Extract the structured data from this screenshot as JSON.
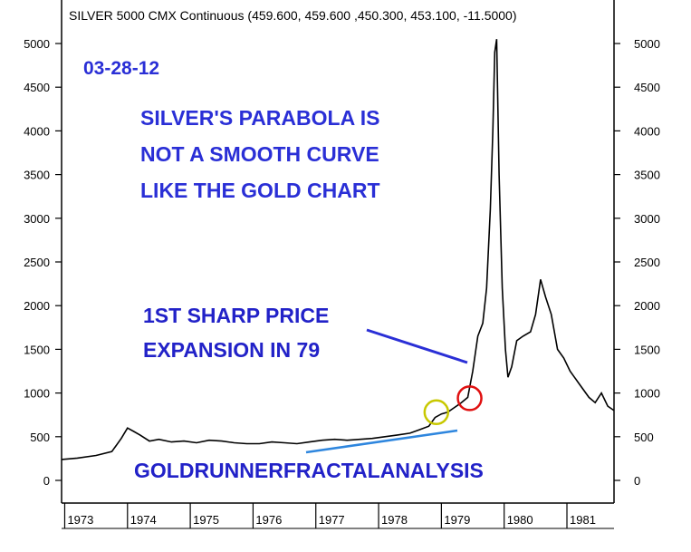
{
  "chart_data": {
    "type": "line",
    "title": "SILVER 5000 CMX Continuous (459.600, 459.600 ,450.300, 453.100, -11.5000)",
    "xlabel": "",
    "ylabel": "",
    "x_ticks": [
      "1973",
      "1974",
      "1975",
      "1976",
      "1977",
      "1978",
      "1979",
      "1980",
      "1981"
    ],
    "y_ticks": [
      0,
      500,
      1000,
      1500,
      2000,
      2500,
      3000,
      3500,
      4000,
      4500,
      5000
    ],
    "xlim": [
      1972.95,
      1981.75
    ],
    "ylim": [
      -100,
      5300
    ],
    "grid": false,
    "line_color": "#000000",
    "annotation_color": "#2a2fd6",
    "accent_line_color": "#2e86de",
    "series": [
      {
        "values": [
          [
            1972.95,
            240
          ],
          [
            1973.2,
            255
          ],
          [
            1973.5,
            285
          ],
          [
            1973.75,
            330
          ],
          [
            1973.9,
            480
          ],
          [
            1974.0,
            600
          ],
          [
            1974.1,
            560
          ],
          [
            1974.2,
            520
          ],
          [
            1974.35,
            450
          ],
          [
            1974.5,
            470
          ],
          [
            1974.7,
            440
          ],
          [
            1974.9,
            450
          ],
          [
            1975.1,
            430
          ],
          [
            1975.3,
            460
          ],
          [
            1975.5,
            450
          ],
          [
            1975.7,
            430
          ],
          [
            1975.9,
            420
          ],
          [
            1976.1,
            420
          ],
          [
            1976.3,
            440
          ],
          [
            1976.5,
            430
          ],
          [
            1976.7,
            420
          ],
          [
            1976.9,
            440
          ],
          [
            1977.1,
            460
          ],
          [
            1977.3,
            470
          ],
          [
            1977.5,
            460
          ],
          [
            1977.7,
            470
          ],
          [
            1977.9,
            480
          ],
          [
            1978.1,
            500
          ],
          [
            1978.3,
            520
          ],
          [
            1978.5,
            540
          ],
          [
            1978.65,
            580
          ],
          [
            1978.8,
            620
          ],
          [
            1978.9,
            720
          ],
          [
            1979.0,
            760
          ],
          [
            1979.1,
            780
          ],
          [
            1979.2,
            830
          ],
          [
            1979.3,
            880
          ],
          [
            1979.42,
            950
          ],
          [
            1979.5,
            1250
          ],
          [
            1979.58,
            1650
          ],
          [
            1979.66,
            1800
          ],
          [
            1979.72,
            2200
          ],
          [
            1979.78,
            3100
          ],
          [
            1979.82,
            4000
          ],
          [
            1979.85,
            4900
          ],
          [
            1979.88,
            5050
          ],
          [
            1979.92,
            3500
          ],
          [
            1979.97,
            2200
          ],
          [
            1980.02,
            1500
          ],
          [
            1980.06,
            1180
          ],
          [
            1980.12,
            1300
          ],
          [
            1980.2,
            1600
          ],
          [
            1980.3,
            1650
          ],
          [
            1980.42,
            1700
          ],
          [
            1980.5,
            1900
          ],
          [
            1980.58,
            2300
          ],
          [
            1980.66,
            2100
          ],
          [
            1980.75,
            1900
          ],
          [
            1980.85,
            1500
          ],
          [
            1980.95,
            1400
          ],
          [
            1981.05,
            1250
          ],
          [
            1981.2,
            1100
          ],
          [
            1981.35,
            950
          ],
          [
            1981.45,
            890
          ],
          [
            1981.55,
            1000
          ],
          [
            1981.65,
            850
          ],
          [
            1981.75,
            800
          ]
        ]
      }
    ],
    "annotations": {
      "date": "03-28-12",
      "headline_lines": [
        "SILVER'S PARABOLA IS",
        "NOT A SMOOTH CURVE",
        "LIKE THE GOLD CHART"
      ],
      "expansion_lines": [
        "1ST SHARP PRICE",
        "EXPANSION IN 79"
      ],
      "signature": "GOLDRUNNERFRACTALANALYSIS"
    },
    "markers": [
      {
        "kind": "circle",
        "color": "#c8c800",
        "x": 1978.92,
        "y": 780
      },
      {
        "kind": "circle",
        "color": "#e01010",
        "x": 1979.45,
        "y": 940
      }
    ]
  }
}
